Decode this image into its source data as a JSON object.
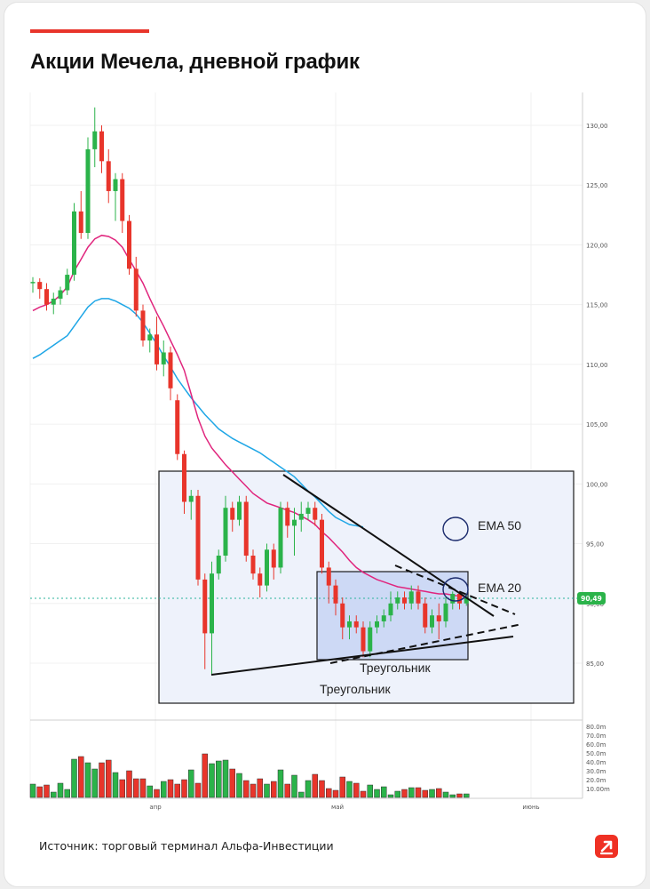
{
  "title": "Акции Мечела, дневной график",
  "source": "Источник: торговый терминал Альфа-Инвестиции",
  "colors": {
    "accent": "#e8352b",
    "up": "#2bb34a",
    "down": "#e8352b",
    "ema20": "#e0257d",
    "ema50": "#1ea6e6",
    "box": "#eef2fb",
    "box_inner": "#cdd9f5"
  },
  "chart_data": {
    "type": "candlestick",
    "price_ticks": [
      "130,00",
      "125,00",
      "120,00",
      "115,00",
      "110,00",
      "105,00",
      "100,00",
      "95,00",
      "90,00",
      "85,00"
    ],
    "volume_ticks": [
      "80.0m",
      "70.0m",
      "60.0m",
      "50.0m",
      "40.0m",
      "30.0m",
      "20.0m",
      "10.00m"
    ],
    "x_ticks": [
      "апр",
      "май",
      "июнь"
    ],
    "last_price": "90,49",
    "annotations": {
      "ema50": "EMA 50",
      "ema20": "EMA 20",
      "triangle_outer": "Треугольник",
      "triangle_inner": "Треугольник"
    },
    "candles": [
      [
        116.8,
        117.3,
        116.0,
        116.9
      ],
      [
        116.9,
        117.2,
        115.5,
        116.3
      ],
      [
        116.3,
        116.8,
        114.5,
        115.0
      ],
      [
        115.0,
        116.0,
        114.2,
        115.5
      ],
      [
        115.5,
        116.5,
        115.0,
        116.2
      ],
      [
        116.2,
        118.0,
        115.8,
        117.5
      ],
      [
        117.5,
        123.5,
        117.0,
        122.8
      ],
      [
        122.8,
        124.5,
        120.5,
        121.0
      ],
      [
        121.0,
        129.0,
        120.5,
        128.0
      ],
      [
        128.0,
        131.5,
        126.5,
        129.5
      ],
      [
        129.5,
        130.0,
        126.0,
        127.0
      ],
      [
        127.0,
        128.0,
        123.5,
        124.5
      ],
      [
        124.5,
        126.0,
        122.0,
        125.5
      ],
      [
        125.5,
        126.0,
        121.0,
        122.0
      ],
      [
        122.0,
        122.5,
        117.5,
        118.0
      ],
      [
        118.0,
        119.0,
        114.0,
        114.5
      ],
      [
        114.5,
        115.0,
        111.5,
        112.0
      ],
      [
        112.0,
        113.0,
        111.0,
        112.5
      ],
      [
        112.5,
        114.0,
        109.5,
        110.0
      ],
      [
        110.0,
        112.0,
        109.0,
        111.0
      ],
      [
        111.0,
        111.5,
        107.0,
        108.0
      ],
      [
        107.0,
        107.5,
        102.0,
        102.5
      ],
      [
        102.5,
        102.8,
        97.5,
        98.5
      ],
      [
        98.5,
        99.5,
        97.0,
        99.0
      ],
      [
        99.0,
        99.5,
        91.5,
        92.0
      ],
      [
        92.0,
        92.5,
        84.5,
        87.5
      ],
      [
        87.5,
        93.5,
        84.0,
        92.5
      ],
      [
        92.5,
        94.5,
        92.0,
        94.0
      ],
      [
        94.0,
        99.0,
        93.5,
        98.0
      ],
      [
        98.0,
        98.5,
        96.0,
        97.0
      ],
      [
        97.0,
        99.0,
        96.5,
        98.5
      ],
      [
        98.5,
        99.0,
        93.5,
        94.0
      ],
      [
        94.0,
        94.5,
        92.0,
        92.5
      ],
      [
        92.5,
        93.0,
        90.5,
        91.5
      ],
      [
        91.5,
        95.0,
        91.0,
        94.5
      ],
      [
        94.5,
        95.0,
        92.0,
        93.0
      ],
      [
        93.0,
        98.5,
        92.5,
        98.0
      ],
      [
        98.0,
        98.5,
        95.5,
        96.5
      ],
      [
        96.5,
        98.0,
        94.0,
        97.0
      ],
      [
        97.0,
        98.5,
        96.0,
        97.5
      ],
      [
        97.5,
        98.5,
        97.0,
        98.0
      ],
      [
        98.0,
        98.5,
        96.5,
        97.0
      ],
      [
        97.0,
        97.5,
        92.5,
        93.0
      ],
      [
        93.0,
        93.5,
        90.0,
        91.5
      ],
      [
        91.5,
        92.0,
        89.0,
        90.0
      ],
      [
        90.0,
        90.5,
        87.0,
        88.0
      ],
      [
        88.0,
        89.0,
        87.0,
        88.5
      ],
      [
        88.5,
        89.0,
        87.5,
        88.0
      ],
      [
        88.0,
        88.5,
        85.5,
        86.0
      ],
      [
        86.0,
        88.5,
        85.5,
        88.0
      ],
      [
        88.0,
        89.0,
        87.5,
        88.5
      ],
      [
        88.5,
        89.5,
        88.0,
        89.0
      ],
      [
        89.0,
        91.0,
        88.5,
        90.0
      ],
      [
        90.0,
        91.0,
        89.5,
        90.5
      ],
      [
        90.5,
        91.0,
        89.5,
        90.0
      ],
      [
        90.0,
        91.5,
        89.5,
        91.0
      ],
      [
        91.0,
        91.5,
        89.5,
        90.0
      ],
      [
        90.0,
        90.5,
        87.5,
        88.0
      ],
      [
        88.0,
        89.5,
        87.5,
        89.0
      ],
      [
        89.0,
        90.0,
        87.0,
        88.5
      ],
      [
        88.5,
        90.5,
        88.0,
        90.0
      ],
      [
        90.0,
        91.0,
        89.5,
        90.8
      ],
      [
        90.8,
        91.0,
        89.5,
        90.0
      ],
      [
        90.0,
        90.8,
        89.8,
        90.5
      ]
    ],
    "ema20": [
      114.5,
      114.8,
      115.0,
      115.3,
      115.8,
      116.5,
      117.8,
      118.8,
      119.8,
      120.5,
      120.8,
      120.7,
      120.4,
      119.8,
      118.8,
      117.8,
      116.8,
      115.5,
      114.3,
      113.2,
      112.0,
      110.8,
      109.5,
      107.5,
      105.5,
      104.0,
      103.0,
      102.3,
      101.6,
      101.0,
      100.4,
      99.8,
      99.2,
      98.8,
      98.4,
      98.2,
      98.0,
      97.8,
      97.6,
      97.3,
      97.0,
      96.6,
      96.0,
      95.5,
      94.9,
      94.3,
      93.6,
      93.0,
      92.6,
      92.3,
      92.0,
      91.8,
      91.6,
      91.4,
      91.3,
      91.2,
      91.1,
      91.0,
      90.9,
      90.8,
      90.8,
      90.7,
      90.6,
      90.6
    ],
    "ema50": [
      110.5,
      110.8,
      111.2,
      111.6,
      112.0,
      112.4,
      113.2,
      114.0,
      114.8,
      115.3,
      115.5,
      115.5,
      115.3,
      115.0,
      114.7,
      114.2,
      113.5,
      112.6,
      111.7,
      110.7,
      109.8,
      108.8,
      108.0,
      107.2,
      106.5,
      105.8,
      105.2,
      104.6,
      104.2,
      103.8,
      103.5,
      103.2,
      102.9,
      102.6,
      102.2,
      101.8,
      101.4,
      101.0,
      100.6,
      100.0,
      99.4,
      98.9,
      98.3,
      97.7,
      97.2,
      96.9,
      96.6,
      96.5,
      96.4
    ],
    "volume": [
      15,
      12,
      14,
      6,
      16,
      9,
      43,
      46,
      39,
      32,
      39,
      42,
      28,
      20,
      30,
      21,
      21,
      13,
      9,
      18,
      20,
      15,
      20,
      31,
      16,
      49,
      38,
      41,
      42,
      32,
      27,
      19,
      15,
      21,
      15,
      18,
      31,
      15,
      25,
      6,
      19,
      26,
      19,
      10,
      8,
      23,
      18,
      16,
      7,
      14,
      9,
      12,
      3,
      7,
      9,
      11,
      11,
      8,
      9,
      10,
      6,
      3,
      4,
      4
    ]
  }
}
